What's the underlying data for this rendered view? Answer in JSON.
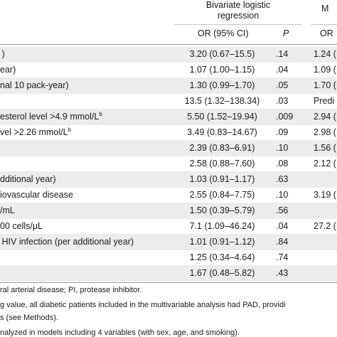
{
  "header": {
    "bivariate_line1": "Bivariate logistic",
    "bivariate_line2": "regression",
    "multivariable_partial": "M"
  },
  "subheader": {
    "or_label": "OR (95% CI)",
    "p_label": "P",
    "mv_or_label": "OR"
  },
  "rows": [
    {
      "label": " )",
      "sup": "",
      "or": "3.20 (0.67–15.5)",
      "p": ".14",
      "mv": "1.24 ("
    },
    {
      "label": "ear)",
      "sup": "",
      "or": "1.07 (1.00–1.15)",
      "p": ".04",
      "mv": "1.09 ("
    },
    {
      "label": "nal 10 pack-year)",
      "sup": "",
      "or": "1.30 (0.99–1.70)",
      "p": ".05",
      "mv": "1.70 ("
    },
    {
      "label": "",
      "sup": "",
      "or": "13.5 (1.32–138.34)",
      "p": ".03",
      "mv": "Predi"
    },
    {
      "label": "esterol level >4.9 mmol/L",
      "sup": "b",
      "or": "5.50 (1.52–19.94)",
      "p": ".009",
      "mv": "2.94 ("
    },
    {
      "label": "vel >2.26 mmol/L",
      "sup": "b",
      "or": "3.49 (0.83–14.67)",
      "p": ".09",
      "mv": "2.98 ("
    },
    {
      "label": "",
      "sup": "",
      "or": "2.39 (0.83–6.91)",
      "p": ".10",
      "mv": "1.56 ("
    },
    {
      "label": "",
      "sup": "",
      "or": "2.58 (0.88–7.60)",
      "p": ".08",
      "mv": "2.12 ("
    },
    {
      "label": "dditional year)",
      "sup": "",
      "or": "1.03 (0.91–1.17)",
      "p": ".63",
      "mv": ""
    },
    {
      "label": "iovascular disease",
      "sup": "",
      "or": "2.55 (0.84–7.75)",
      "p": ".10",
      "mv": "3.19 ("
    },
    {
      "label": "/mL",
      "sup": "",
      "or": "1.50 (0.39–5.79)",
      "p": ".56",
      "mv": ""
    },
    {
      "label": "00 cells/μL",
      "sup": "",
      "or": "7.1 (1.09–46.24)",
      "p": ".04",
      "mv": "27.2 ("
    },
    {
      "label": " HIV infection (per additional year)",
      "sup": "",
      "or": "1.01 (0.91–1.12)",
      "p": ".84",
      "mv": ""
    },
    {
      "label": "",
      "sup": "",
      "or": "1.25 (0.34–4.64)",
      "p": ".74",
      "mv": ""
    },
    {
      "label": "",
      "sup": "",
      "or": "1.67 (0.48–5.82)",
      "p": ".43",
      "mv": ""
    }
  ],
  "footnotes": [
    "ral arterial disease; PI, protease inhibitor.",
    "g value, all diabetic patients included in the multivariable analysis had PAD, providi",
    "s (see Methods).",
    "nalyzed in models including 4 variables (with sex, age, and smoking)."
  ]
}
